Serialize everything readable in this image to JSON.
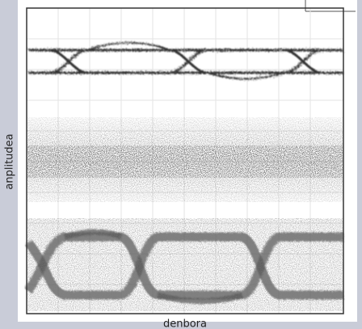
{
  "figure": {
    "y_label": "anplitudea",
    "x_label": "denbora"
  }
}
